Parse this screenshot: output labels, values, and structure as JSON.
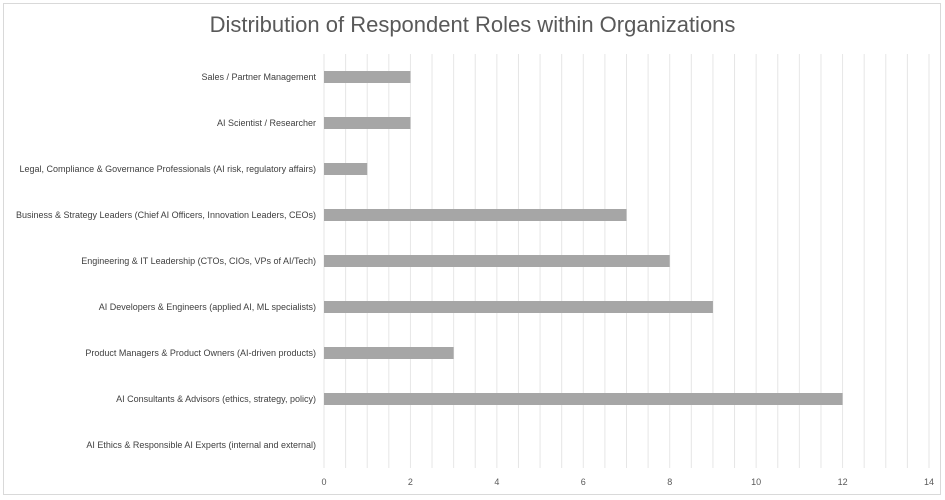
{
  "chart_data": {
    "type": "bar",
    "orientation": "horizontal",
    "title": "Distribution of Respondent Roles within Organizations",
    "xlabel": "",
    "ylabel": "",
    "categories": [
      "Sales / Partner Management",
      "AI Scientist / Researcher",
      "Legal, Compliance & Governance Professionals (AI risk, regulatory affairs)",
      "Business & Strategy Leaders (Chief AI Officers, Innovation Leaders, CEOs)",
      "Engineering & IT Leadership (CTOs, CIOs, VPs of AI/Tech)",
      "AI Developers & Engineers (applied AI, ML specialists)",
      "Product Managers & Product Owners (AI-driven products)",
      "AI Consultants & Advisors (ethics, strategy, policy)",
      "AI Ethics & Responsible AI Experts (internal and external)"
    ],
    "values": [
      2,
      2,
      1,
      7,
      8,
      9,
      3,
      12,
      0
    ],
    "xlim": [
      0,
      14
    ],
    "xticks": [
      "0",
      "2",
      "4",
      "6",
      "8",
      "10",
      "12",
      "14"
    ],
    "grid": true,
    "legend": "none",
    "bar_color": "#a6a6a6",
    "grid_color": "#e6e6e6"
  }
}
